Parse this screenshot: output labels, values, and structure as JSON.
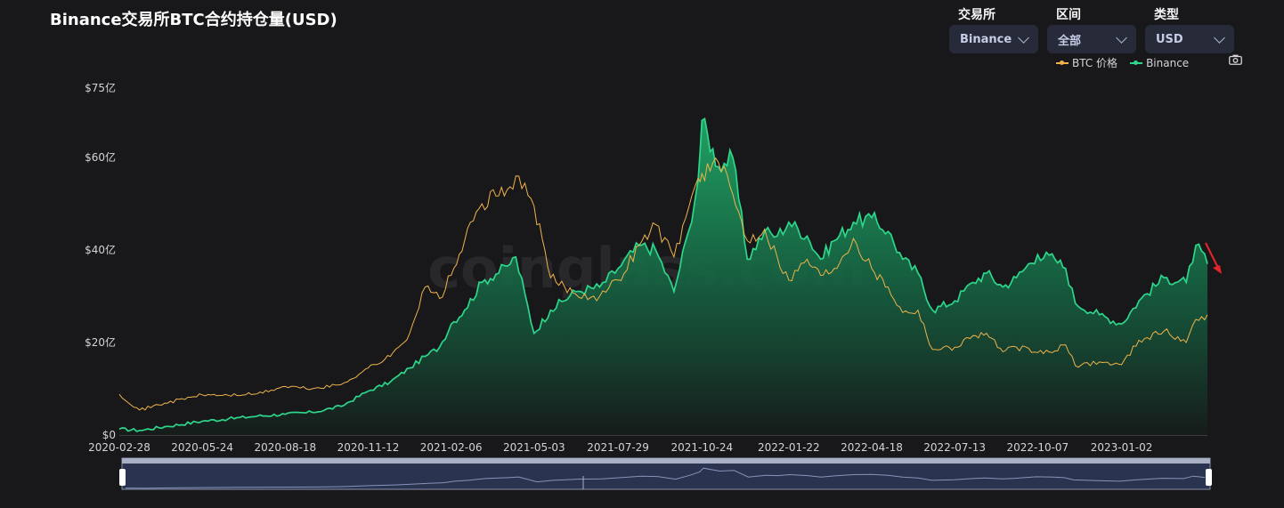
{
  "title": "Binance交易所BTC合约持仓量(USD)",
  "filters": [
    {
      "label": "交易所",
      "value": "Binance"
    },
    {
      "label": "区间",
      "value": "全部"
    },
    {
      "label": "类型",
      "value": "USD"
    }
  ],
  "watermark": "coinglass.com",
  "colors": {
    "btc_price": "#f0b34a",
    "binance": "#2dd68a",
    "background": "#18181b",
    "annotation_arrow": "#e5252a"
  },
  "icons": {
    "camera": "camera-icon",
    "dropdown": "chevron-down-icon"
  },
  "chart_data": {
    "type": "area",
    "title": "Binance交易所BTC合约持仓量(USD)",
    "x_ticks": [
      "2020-02-28",
      "2020-05-24",
      "2020-08-18",
      "2020-11-12",
      "2021-02-06",
      "2021-05-03",
      "2021-07-29",
      "2021-10-24",
      "2022-01-22",
      "2022-04-18",
      "2022-07-13",
      "2022-10-07",
      "2023-01-02"
    ],
    "y_ticks": [
      "$0",
      "$20亿",
      "$40亿",
      "$60亿",
      "$75亿"
    ],
    "y_tick_values": [
      0,
      20,
      40,
      60,
      75
    ],
    "ylim": [
      0,
      75
    ],
    "y_unit": "亿 USD",
    "legend_position": "top-right",
    "grid": false,
    "series": [
      {
        "name": "BTC 价格",
        "type": "line",
        "x": [
          "2020-02-28",
          "2020-03-20",
          "2020-04-15",
          "2020-05-24",
          "2020-06-20",
          "2020-07-20",
          "2020-08-18",
          "2020-09-15",
          "2020-10-15",
          "2020-11-12",
          "2020-12-05",
          "2020-12-25",
          "2021-01-10",
          "2021-01-25",
          "2021-02-06",
          "2021-02-20",
          "2021-03-10",
          "2021-04-05",
          "2021-04-14",
          "2021-05-03",
          "2021-05-20",
          "2021-06-15",
          "2021-07-10",
          "2021-07-29",
          "2021-08-20",
          "2021-09-06",
          "2021-09-25",
          "2021-10-10",
          "2021-10-20",
          "2021-10-24",
          "2021-11-10",
          "2021-11-25",
          "2021-12-10",
          "2021-12-28",
          "2022-01-10",
          "2022-01-22",
          "2022-02-10",
          "2022-02-24",
          "2022-03-10",
          "2022-03-30",
          "2022-04-18",
          "2022-05-05",
          "2022-05-20",
          "2022-06-05",
          "2022-06-20",
          "2022-07-13",
          "2022-08-01",
          "2022-08-15",
          "2022-09-01",
          "2022-09-15",
          "2022-10-07",
          "2022-10-25",
          "2022-11-05",
          "2022-11-15",
          "2022-12-10",
          "2023-01-02",
          "2023-01-20",
          "2023-02-15",
          "2023-03-10",
          "2023-03-20",
          "2023-04-01"
        ],
        "values": [
          8.8,
          5.4,
          6.9,
          8.7,
          8.6,
          8.9,
          10.5,
          10.0,
          10.9,
          14.5,
          17.0,
          22.0,
          32.0,
          29.5,
          34.5,
          42.0,
          50.0,
          53.0,
          56.0,
          49.5,
          34.0,
          30.5,
          30.0,
          33.5,
          41.0,
          45.5,
          38.5,
          49.0,
          55.5,
          56.5,
          59.0,
          52.0,
          42.0,
          44.5,
          38.5,
          33.5,
          38.0,
          34.5,
          36.0,
          42.5,
          36.0,
          32.0,
          26.5,
          27.0,
          18.5,
          19.0,
          21.5,
          22.0,
          18.0,
          19.0,
          17.8,
          18.2,
          19.5,
          15.0,
          15.8,
          15.2,
          20.5,
          22.5,
          20.0,
          25.0,
          26.0
        ]
      },
      {
        "name": "Binance",
        "type": "area",
        "x": [
          "2020-02-28",
          "2020-03-20",
          "2020-04-15",
          "2020-05-24",
          "2020-06-20",
          "2020-07-20",
          "2020-08-18",
          "2020-09-15",
          "2020-10-15",
          "2020-11-12",
          "2020-12-05",
          "2020-12-25",
          "2021-01-10",
          "2021-01-25",
          "2021-02-06",
          "2021-02-20",
          "2021-03-10",
          "2021-04-05",
          "2021-04-14",
          "2021-05-03",
          "2021-05-20",
          "2021-06-15",
          "2021-07-10",
          "2021-07-29",
          "2021-08-20",
          "2021-09-06",
          "2021-09-25",
          "2021-10-10",
          "2021-10-20",
          "2021-10-24",
          "2021-11-10",
          "2021-11-25",
          "2021-12-10",
          "2021-12-28",
          "2022-01-10",
          "2022-01-22",
          "2022-02-10",
          "2022-02-24",
          "2022-03-10",
          "2022-03-30",
          "2022-04-18",
          "2022-05-05",
          "2022-05-20",
          "2022-06-05",
          "2022-06-20",
          "2022-07-13",
          "2022-08-01",
          "2022-08-15",
          "2022-09-01",
          "2022-09-15",
          "2022-10-07",
          "2022-10-25",
          "2022-11-05",
          "2022-11-15",
          "2022-12-10",
          "2023-01-02",
          "2023-01-20",
          "2023-02-15",
          "2023-03-10",
          "2023-03-20",
          "2023-04-01"
        ],
        "values": [
          1.3,
          1.0,
          1.8,
          3.0,
          3.5,
          4.1,
          4.5,
          4.9,
          6.2,
          9.5,
          11.5,
          14.5,
          17.0,
          19.0,
          24.0,
          27.0,
          33.0,
          36.5,
          38.5,
          22.0,
          27.0,
          31.0,
          32.0,
          36.0,
          41.0,
          40.0,
          31.0,
          44.0,
          55.0,
          68.0,
          58.0,
          60.0,
          38.0,
          44.0,
          43.0,
          46.0,
          43.0,
          38.0,
          42.0,
          46.0,
          47.0,
          44.0,
          38.0,
          35.0,
          27.0,
          29.0,
          33.0,
          35.0,
          32.0,
          34.0,
          39.0,
          38.0,
          36.0,
          28.5,
          26.0,
          24.0,
          29.0,
          34.0,
          33.0,
          41.0,
          37.0
        ]
      }
    ]
  }
}
